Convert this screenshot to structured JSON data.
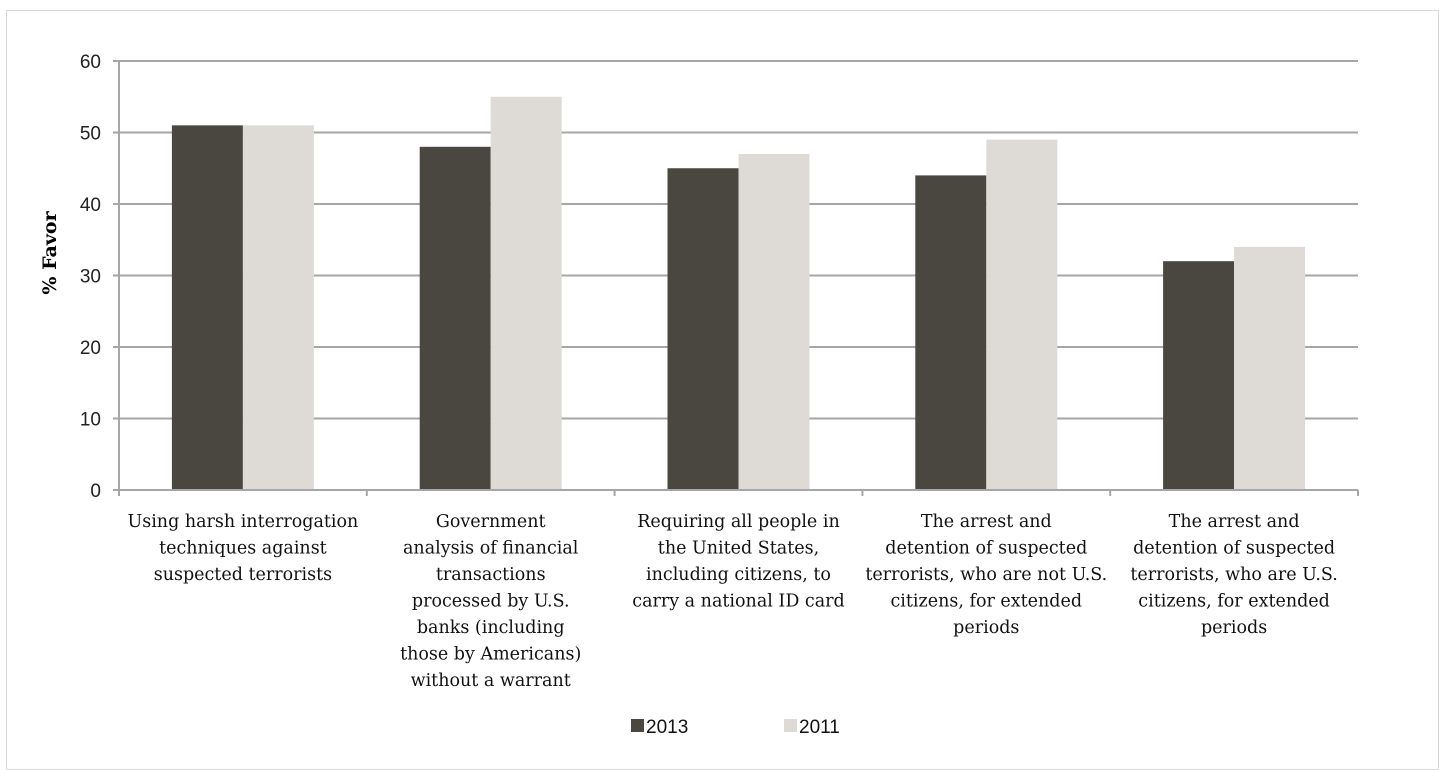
{
  "chart_data": {
    "type": "bar",
    "ylabel": "% Favor",
    "ylim": [
      0,
      60
    ],
    "yticks": [
      "0",
      "10",
      "20",
      "30",
      "40",
      "50",
      "60"
    ],
    "grid": true,
    "legend_position": "bottom",
    "categories": [
      [
        "Using harsh interrogation",
        "techniques against",
        "suspected terrorists"
      ],
      [
        "Government",
        "analysis of financial",
        "transactions",
        "processed by U.S.",
        "banks (including",
        "those by Americans)",
        "without a warrant"
      ],
      [
        "Requiring all people in",
        "the United States,",
        "including citizens, to",
        "carry a national ID card"
      ],
      [
        "The arrest and",
        "detention of suspected",
        "terrorists, who are not U.S.",
        "citizens, for extended",
        "periods"
      ],
      [
        "The arrest and",
        "detention of suspected",
        "terrorists, who are U.S.",
        "citizens, for extended",
        "periods"
      ]
    ],
    "series": [
      {
        "name": "2013",
        "color": "#4a4740",
        "values": [
          51,
          48,
          45,
          44,
          32
        ]
      },
      {
        "name": "2011",
        "color": "#dedbd6",
        "values": [
          51,
          55,
          47,
          49,
          34
        ]
      }
    ]
  }
}
